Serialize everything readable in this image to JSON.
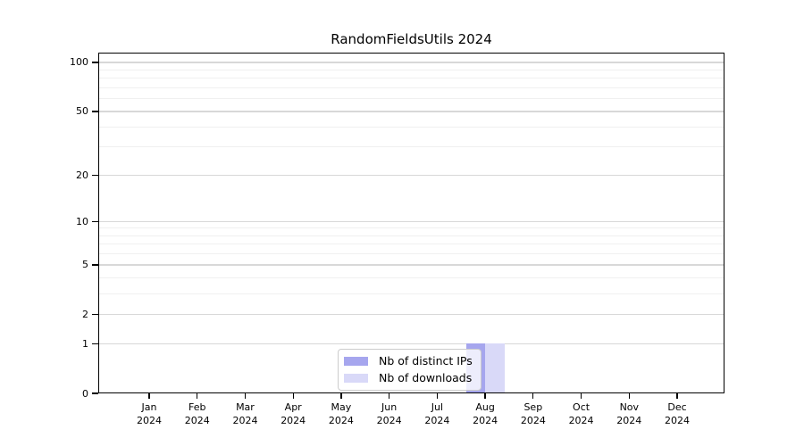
{
  "title": "RandomFieldsUtils 2024",
  "colors": {
    "background": "#ffffff",
    "axis": "#000000",
    "grid_major": "#d8d8d8",
    "grid_minor": "#f0f0f0",
    "legend_border": "#cccccc",
    "distinct_ips": "#a6a6ee",
    "downloads": "#d9d9f8"
  },
  "legend": {
    "position": "lower-center",
    "items": [
      {
        "label": "Nb of distinct IPs",
        "color": "#a6a6ee"
      },
      {
        "label": "Nb of downloads",
        "color": "#d9d9f8"
      }
    ]
  },
  "chart_data": {
    "type": "bar",
    "title": "RandomFieldsUtils 2024",
    "xlabel": "",
    "ylabel": "",
    "grid": "horizontal",
    "x": {
      "months": [
        "Jan",
        "Feb",
        "Mar",
        "Apr",
        "May",
        "Jun",
        "Jul",
        "Aug",
        "Sep",
        "Oct",
        "Nov",
        "Dec"
      ],
      "year": "2024"
    },
    "categories": [
      "Jan 2024",
      "Feb 2024",
      "Mar 2024",
      "Apr 2024",
      "May 2024",
      "Jun 2024",
      "Jul 2024",
      "Aug 2024",
      "Sep 2024",
      "Oct 2024",
      "Nov 2024",
      "Dec 2024"
    ],
    "series": [
      {
        "name": "Nb of distinct IPs",
        "color": "#a6a6ee",
        "values": [
          0,
          0,
          0,
          0,
          0,
          0,
          0,
          1,
          0,
          0,
          0,
          0
        ]
      },
      {
        "name": "Nb of downloads",
        "color": "#d9d9f8",
        "values": [
          0,
          0,
          0,
          0,
          0,
          0,
          0,
          1,
          0,
          0,
          0,
          0
        ]
      }
    ],
    "y_axis": {
      "scale": "log1p",
      "ticks": [
        0,
        1,
        2,
        5,
        10,
        20,
        50,
        100
      ],
      "minor_ticks": [
        3,
        4,
        6,
        7,
        8,
        9,
        30,
        40,
        60,
        70,
        80,
        90
      ],
      "ylim": [
        0,
        115
      ]
    }
  }
}
